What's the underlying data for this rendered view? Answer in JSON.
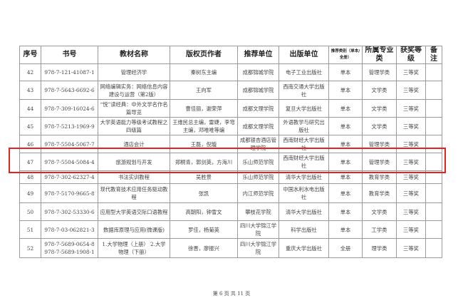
{
  "table": {
    "headers": [
      "序号",
      "书号",
      "教材名称",
      "版权页作者",
      "推荐单位",
      "出版单位",
      "推荐类别（单本/全册）",
      "所属专业类",
      "获奖等级",
      "备注"
    ],
    "rows": [
      {
        "no": "42",
        "isbn": "978-7-121-41087-1",
        "title": "管理经济学",
        "author": "秦树东主编",
        "unit": "成都锦城学院",
        "publisher": "电子工业出版社",
        "category": "单本",
        "major": "管理学类",
        "award": "三等奖",
        "note": ""
      },
      {
        "no": "43",
        "isbn": "978-7-5643-6692-6",
        "title": "网络编辑实务：网络信息内容建设与运营（第2版）",
        "author": "王向军",
        "unit": "成都锦城学院",
        "publisher": "西南交通大学出版社",
        "category": "单本",
        "major": "文学类",
        "award": "三等奖",
        "note": ""
      },
      {
        "no": "44",
        "isbn": "978-7-309-16024-6",
        "title": "“悦”读经典：中外文学名作名篇导览",
        "author": "曹佳丽，谢荣萍",
        "unit": "成都文理学院",
        "publisher": "复旦大学出版社",
        "category": "单本",
        "major": "文学类",
        "award": "三等奖",
        "note": ""
      },
      {
        "no": "45",
        "isbn": "978-7-5213-1969-9",
        "title": "大学英语能力等级考试教程之四级篇",
        "author": "王维民总主编，雷婕，李穹主编，邓唯唯等编",
        "unit": "成都文理学院",
        "publisher": "外语教学与研究出版社",
        "category": "单本",
        "major": "文学类",
        "award": "三等奖",
        "note": ""
      },
      {
        "no": "46",
        "isbn": "978-7-5504-5067-7",
        "title": "酒店会计",
        "author": "王磊，倪璇",
        "unit": "成都银杏酒店管理学院",
        "publisher": "西南财经大学出版社",
        "category": "单本",
        "major": "管理学类",
        "award": "三等奖",
        "note": ""
      },
      {
        "no": "47",
        "isbn": "978-7-5504-5084-4",
        "title": "旅游规划与开发",
        "author": "郑桐青，郭剑英，方海川",
        "unit": "乐山师范学院",
        "publisher": "西南财经大学出版社",
        "category": "单本",
        "major": "管理学类",
        "award": "三等奖",
        "note": ""
      },
      {
        "no": "48",
        "isbn": "978-7-302-62327-4",
        "title": "书法实训教程",
        "author": "吴胜景",
        "unit": "乐山师范学院",
        "publisher": "清华大学出版社",
        "category": "单本",
        "major": "教育学类",
        "award": "三等奖",
        "note": ""
      },
      {
        "no": "49",
        "isbn": "978-7-5170-9665-8",
        "title": "现代教育技术应用任务驱动教程",
        "author": "张凯",
        "unit": "内江师范学院",
        "publisher": "中国水利水电出版社",
        "category": "单本",
        "major": "教育学类",
        "award": "三等奖",
        "note": ""
      },
      {
        "no": "50",
        "isbn": "978-7-302-53330-6",
        "title": "应用型大学英语交际口语教程",
        "author": "高朝阳，钟雪文",
        "unit": "攀枝花学院",
        "publisher": "清华大学出版社",
        "category": "单本",
        "major": "文学类",
        "award": "三等奖",
        "note": ""
      },
      {
        "no": "51",
        "isbn": "978-7-03-062821-3",
        "title": "数据库原理与应用(微课版)",
        "author": "罗佳，杨菊英",
        "unit": "四川大学锦江学院",
        "publisher": "科学出版社",
        "category": "单本",
        "major": "工学类",
        "award": "三等奖",
        "note": ""
      },
      {
        "no": "52",
        "isbn": "978-7-5689-0654-8 978-7-5689-1908-1",
        "title": "1.大学物理（上册） 2.大学物理（下册）",
        "author": "徐晋，廖振兴",
        "unit": "四川大学锦江学院",
        "publisher": "重庆大学出版社",
        "category": "全册",
        "major": "理学类",
        "award": "三等奖",
        "note": ""
      }
    ],
    "highlighted_row": "47",
    "highlight_color": "#e52222"
  },
  "footer": {
    "page_label": "第 6 页 共 11 页"
  }
}
